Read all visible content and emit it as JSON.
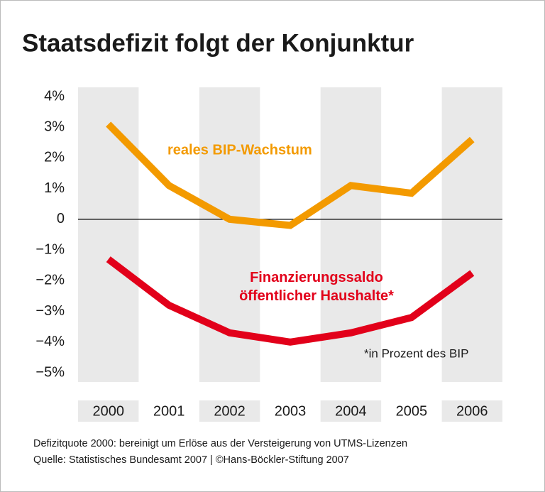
{
  "chart_data": {
    "type": "line",
    "title": "Staatsdefizit folgt der Konjunktur",
    "categories": [
      "2000",
      "2001",
      "2002",
      "2003",
      "2004",
      "2005",
      "2006"
    ],
    "series": [
      {
        "name": "reales BIP-Wachstum",
        "color": "#f39a00",
        "values": [
          3.1,
          1.1,
          0.0,
          -0.2,
          1.1,
          0.85,
          2.6
        ]
      },
      {
        "name": "Finanzierungssaldo öffentlicher Haushalte*",
        "color": "#e2001a",
        "values": [
          -1.3,
          -2.8,
          -3.7,
          -4.0,
          -3.7,
          -3.2,
          -1.75
        ]
      }
    ],
    "ylim": [
      -5.3,
      4.3
    ],
    "yticks": [
      {
        "value": 4,
        "label": "4%"
      },
      {
        "value": 3,
        "label": "3%"
      },
      {
        "value": 2,
        "label": "2%"
      },
      {
        "value": 1,
        "label": "1%"
      },
      0,
      {
        "value": -1,
        "label": "−1%"
      },
      {
        "value": -2,
        "label": "−2%"
      },
      {
        "value": -3,
        "label": "−3%"
      },
      {
        "value": -4,
        "label": "−4%"
      },
      {
        "value": -5,
        "label": "−5%"
      }
    ],
    "annotations": [
      "*in Prozent des BIP"
    ],
    "footnotes": [
      "Defizitquote 2000: bereinigt um Erlöse aus der Versteigerung von UTMS-Lizenzen",
      "Quelle: Statistisches Bundesamt 2007 | ©Hans-Böckler-Stiftung 2007"
    ]
  }
}
